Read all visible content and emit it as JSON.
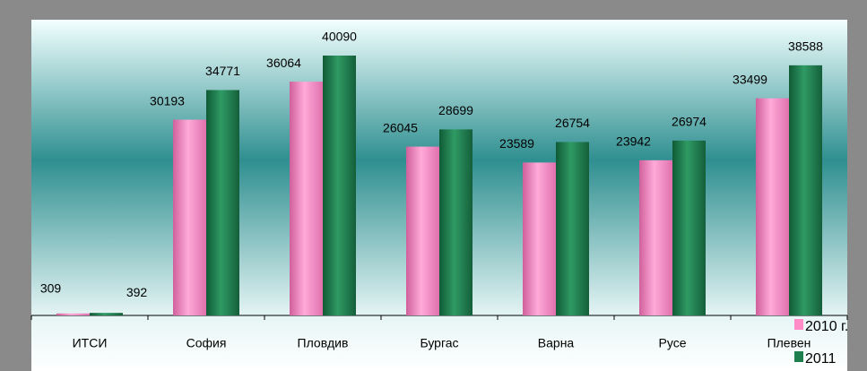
{
  "chart_data": {
    "type": "bar",
    "categories": [
      "ИТСИ",
      "София",
      "Пловдив",
      "Бургас",
      "Варна",
      "Русе",
      "Плевен"
    ],
    "series": [
      {
        "name": "2010 г.",
        "color": "#ff8cc6",
        "values": [
          309,
          30193,
          36064,
          26045,
          23589,
          23942,
          33499
        ]
      },
      {
        "name": "2011",
        "color": "#1f7f4f",
        "values": [
          392,
          34771,
          40090,
          28699,
          26754,
          26974,
          38588
        ]
      }
    ],
    "legend": "bottom-right"
  }
}
